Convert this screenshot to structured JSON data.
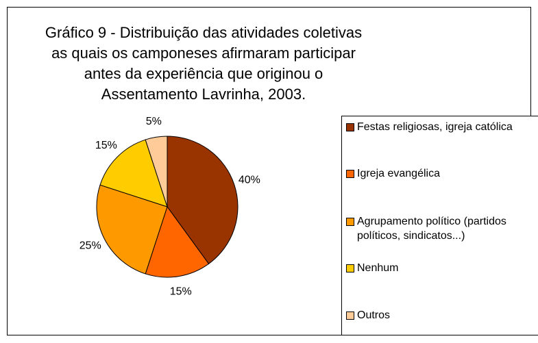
{
  "chart_data": {
    "type": "pie",
    "title": "Gráfico 9 - Distribuição das atividades coletivas as quais os camponeses afirmaram participar antes da experiência que originou o Assentamento Lavrinha, 2003.",
    "categories": [
      "Festas religiosas, igreja católica",
      "Igreja evangélica",
      "Agrupamento político (partidos políticos, sindicatos...)",
      "Nenhum",
      "Outros"
    ],
    "values": [
      40,
      15,
      25,
      15,
      5
    ],
    "value_labels": [
      "40%",
      "15%",
      "25%",
      "15%",
      "5%"
    ],
    "colors": [
      "#993300",
      "#ff6600",
      "#ff9900",
      "#ffcc00",
      "#ffcc99"
    ],
    "legend": "right"
  }
}
